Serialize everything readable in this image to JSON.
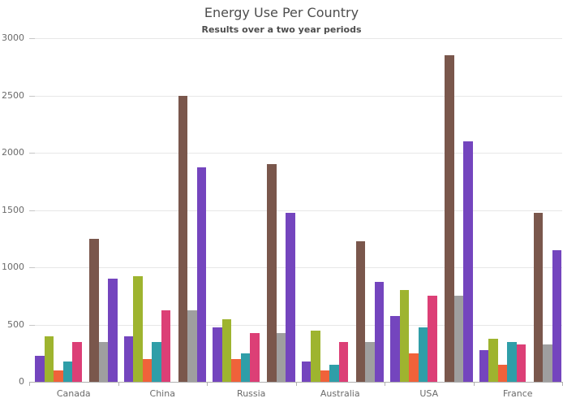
{
  "chart_data": {
    "type": "bar",
    "title": "Energy Use Per Country",
    "subtitle": "Results over a two year periods",
    "legend": "none",
    "grid": "horizontal",
    "ylim": [
      0,
      3000
    ],
    "y_ticks": [
      0,
      500,
      1000,
      1500,
      2000,
      2500,
      3000
    ],
    "categories": [
      "Canada",
      "China",
      "Russia",
      "Australia",
      "USA",
      "France"
    ],
    "series": [
      {
        "name": "violet",
        "color": "#7445BE",
        "cluster": 1,
        "values": [
          225,
          400,
          475,
          175,
          575,
          275
        ]
      },
      {
        "name": "olive",
        "color": "#9EB42F",
        "cluster": 1,
        "values": [
          400,
          925,
          550,
          450,
          800,
          375
        ]
      },
      {
        "name": "orange",
        "color": "#F0623A",
        "cluster": 1,
        "values": [
          100,
          200,
          200,
          100,
          250,
          150
        ]
      },
      {
        "name": "teal",
        "color": "#2F9EA8",
        "cluster": 1,
        "values": [
          175,
          350,
          250,
          150,
          475,
          350
        ]
      },
      {
        "name": "pink",
        "color": "#DC3F76",
        "cluster": 1,
        "values": [
          350,
          625,
          425,
          350,
          750,
          325
        ]
      },
      {
        "name": "brown",
        "color": "#7A574C",
        "cluster": 2,
        "values": [
          1250,
          2500,
          1900,
          1225,
          2850,
          1475
        ]
      },
      {
        "name": "gray",
        "color": "#9F9F9F",
        "cluster": 2,
        "values": [
          350,
          625,
          425,
          350,
          750,
          325
        ]
      },
      {
        "name": "violet-2",
        "color": "#7445BE",
        "cluster": 2,
        "values": [
          900,
          1875,
          1475,
          875,
          2100,
          1150
        ]
      }
    ],
    "colors": {
      "title_text": "#4d4d4d",
      "axis_text": "#6a6a6a",
      "gridline": "#e7e7e7",
      "axis_line": "#b1b1b1"
    }
  }
}
